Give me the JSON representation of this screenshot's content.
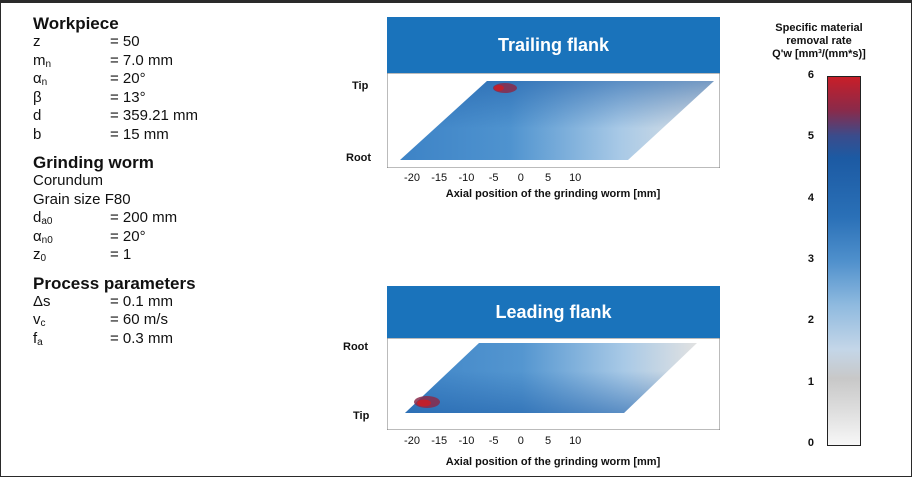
{
  "workpiece": {
    "title": "Workpiece",
    "params": [
      {
        "sym": "z",
        "sub": "",
        "value": "= 50"
      },
      {
        "sym": "m",
        "sub": "n",
        "value": "= 7.0 mm"
      },
      {
        "sym": "α",
        "sub": "n",
        "value": "= 20°"
      },
      {
        "sym": "β",
        "sub": "",
        "value": "= 13°"
      },
      {
        "sym": "d",
        "sub": "",
        "value": "= 359.21 mm"
      },
      {
        "sym": "b",
        "sub": "",
        "value": "= 15 mm"
      }
    ]
  },
  "grinding_worm": {
    "title": "Grinding worm",
    "material": "Corundum",
    "grain": "Grain size F80",
    "params": [
      {
        "sym": "d",
        "sub": "a0",
        "value": "= 200 mm"
      },
      {
        "sym": "α",
        "sub": "n0",
        "value": "= 20°"
      },
      {
        "sym": "z",
        "sub": "0",
        "value": "= 1"
      }
    ]
  },
  "process": {
    "title": "Process parameters",
    "params": [
      {
        "sym": "Δs",
        "sub": "",
        "value": "= 0.1 mm"
      },
      {
        "sym": "v",
        "sub": "c",
        "value": "= 60 m/s"
      },
      {
        "sym": "f",
        "sub": "a",
        "value": "= 0.3 mm"
      }
    ]
  },
  "trailing": {
    "title": "Trailing flank",
    "y_top": "Tip",
    "y_bottom": "Root",
    "x_ticks": [
      "-20",
      "-15",
      "-10",
      "-5",
      "0",
      "5",
      "10"
    ],
    "x_label": "Axial position of the grinding worm [mm]"
  },
  "leading": {
    "title": "Leading flank",
    "y_top": "Root",
    "y_bottom": "Tip",
    "x_ticks": [
      "-20",
      "-15",
      "-10",
      "-5",
      "0",
      "5",
      "10"
    ],
    "x_label": "Axial position of the grinding worm [mm]"
  },
  "colorbar": {
    "title_line1": "Specific material",
    "title_line2": "removal rate",
    "title_line3": "Q'w [mm³/(mm*s)]",
    "ticks": [
      "6",
      "5",
      "4",
      "3",
      "2",
      "1",
      "0"
    ],
    "colors": [
      "#f7f7f7",
      "#c8c8c8",
      "#8fbadf",
      "#2a70b7",
      "#1c5aa3",
      "#c81e28"
    ]
  }
}
